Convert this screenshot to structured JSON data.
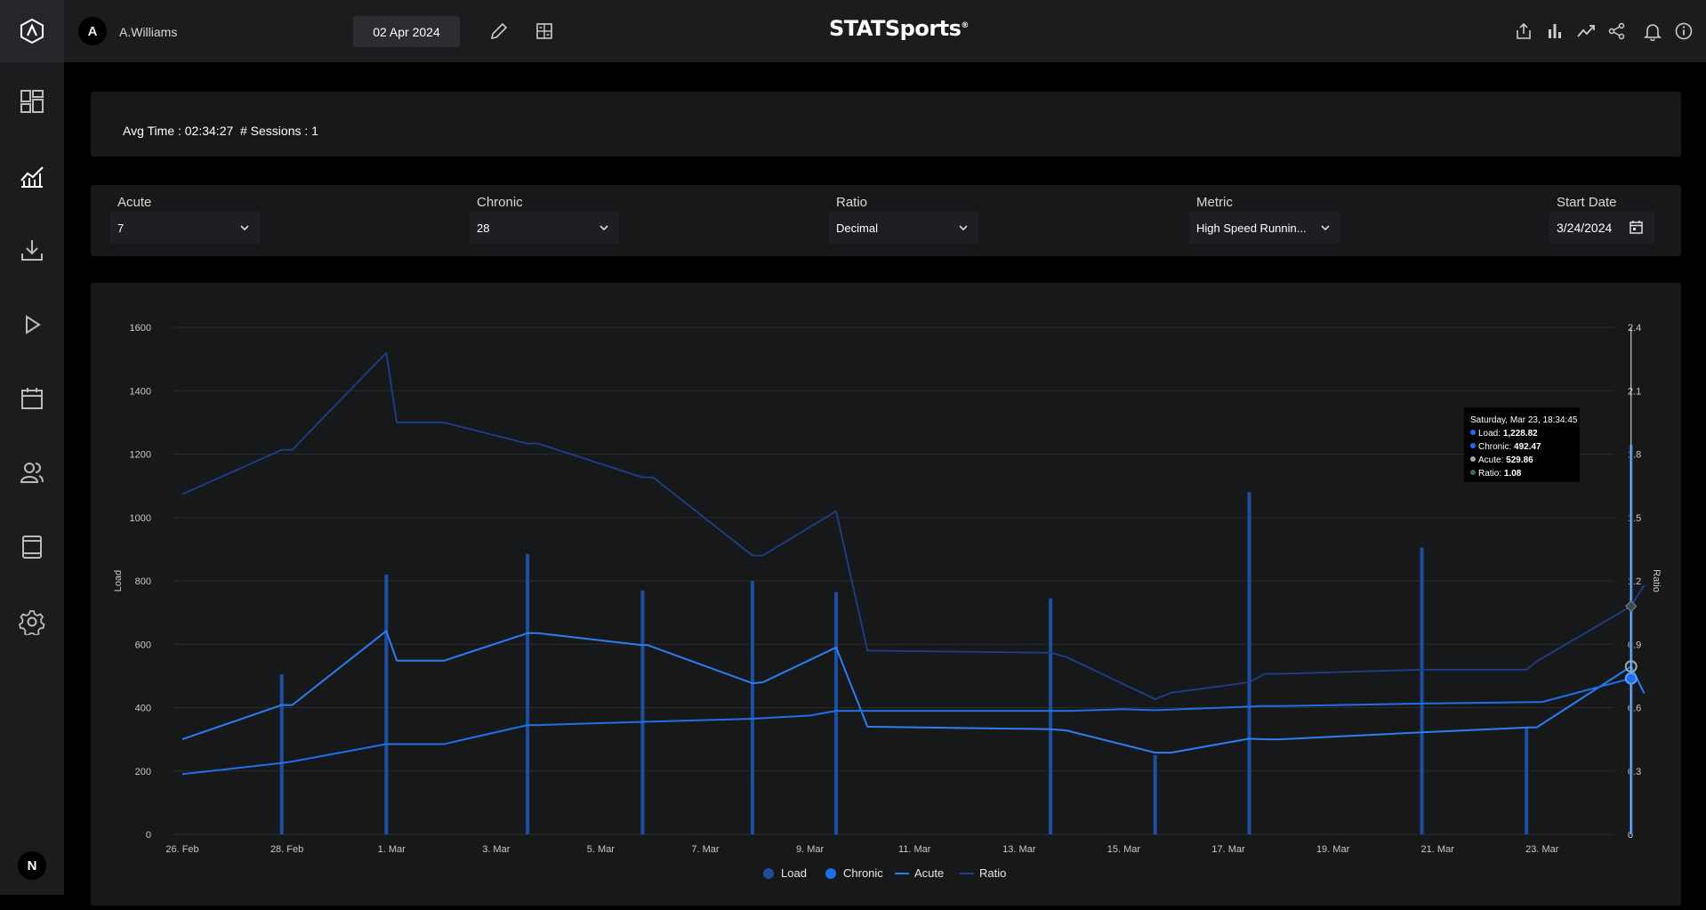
{
  "user": {
    "initial": "A",
    "name": "A.Williams"
  },
  "header": {
    "date": "02 Apr 2024",
    "brand": "STATSports",
    "brand_mark": "®"
  },
  "sidebar": {
    "user_initial": "N"
  },
  "stats": {
    "avg_time": "Avg Time : 02:34:27",
    "sessions": "# Sessions : 1"
  },
  "filters": {
    "acute": {
      "label": "Acute",
      "value": "7"
    },
    "chronic": {
      "label": "Chronic",
      "value": "28"
    },
    "ratio": {
      "label": "Ratio",
      "value": "Decimal"
    },
    "metric": {
      "label": "Metric",
      "value": "High Speed Runnin..."
    },
    "start_date": {
      "label": "Start Date",
      "value": "3/24/2024"
    }
  },
  "colors": {
    "load": "#1c4fa0",
    "chronic": "#1f6fe6",
    "acute": "#2a7ef0",
    "ratio": "#1e3f8a"
  },
  "chart_data": {
    "type": "line",
    "ylabel": "Load",
    "y2label": "Ratio",
    "ylim": [
      0,
      1600
    ],
    "y2lim": [
      0,
      2.4
    ],
    "yticks": [
      "0",
      "200",
      "400",
      "600",
      "800",
      "1000",
      "1200",
      "1400",
      "1600"
    ],
    "y2ticks": [
      "0",
      "0.3",
      "0.6",
      "0.9",
      "1.2",
      "1.5",
      "1.8",
      "2.1",
      "2.4"
    ],
    "xticks": [
      "26. Feb",
      "28. Feb",
      "1. Mar",
      "3. Mar",
      "5. Mar",
      "7. Mar",
      "9. Mar",
      "11. Mar",
      "13. Mar",
      "15. Mar",
      "17. Mar",
      "19. Mar",
      "21. Mar",
      "23. Mar"
    ],
    "legend": [
      "Load",
      "Chronic",
      "Acute",
      "Ratio"
    ],
    "grid": true,
    "legend_position": "bottom",
    "series": [
      {
        "name": "Load",
        "type": "bar",
        "points": [
          [
            1.9,
            505
          ],
          [
            3.9,
            820
          ],
          [
            6.6,
            885
          ],
          [
            8.8,
            770
          ],
          [
            10.9,
            800
          ],
          [
            12.5,
            765
          ],
          [
            16.6,
            745
          ],
          [
            18.6,
            250
          ],
          [
            20.4,
            1080
          ],
          [
            23.7,
            905
          ],
          [
            25.7,
            335
          ],
          [
            27.7,
            1230
          ]
        ]
      },
      {
        "name": "Chronic",
        "points": [
          [
            0,
            190
          ],
          [
            1.9,
            225
          ],
          [
            2.1,
            230
          ],
          [
            3.9,
            285
          ],
          [
            4.1,
            285
          ],
          [
            5.0,
            285
          ],
          [
            6.6,
            345
          ],
          [
            6.8,
            345
          ],
          [
            8.8,
            355
          ],
          [
            10.9,
            365
          ],
          [
            12.0,
            375
          ],
          [
            12.5,
            390
          ],
          [
            13.0,
            390
          ],
          [
            16.6,
            390
          ],
          [
            17.0,
            390
          ],
          [
            18.0,
            395
          ],
          [
            18.6,
            392
          ],
          [
            20.4,
            403
          ],
          [
            20.6,
            405
          ],
          [
            21.0,
            405
          ],
          [
            23.7,
            413
          ],
          [
            25.7,
            417
          ],
          [
            26.0,
            418
          ],
          [
            27.7,
            492
          ]
        ]
      },
      {
        "name": "Acute",
        "points": [
          [
            0,
            300
          ],
          [
            1.9,
            408
          ],
          [
            2.1,
            408
          ],
          [
            3.9,
            642
          ],
          [
            4.1,
            548
          ],
          [
            5.0,
            548
          ],
          [
            6.6,
            635
          ],
          [
            6.8,
            635
          ],
          [
            8.8,
            597
          ],
          [
            8.9,
            597
          ],
          [
            10.9,
            477
          ],
          [
            11.1,
            480
          ],
          [
            12.5,
            590
          ],
          [
            13.1,
            340
          ],
          [
            16.6,
            332
          ],
          [
            16.9,
            328
          ],
          [
            18.6,
            258
          ],
          [
            18.9,
            258
          ],
          [
            20.4,
            302
          ],
          [
            20.7,
            300
          ],
          [
            21.0,
            300
          ],
          [
            23.7,
            322
          ],
          [
            25.7,
            337
          ],
          [
            25.9,
            338
          ],
          [
            27.7,
            529.86
          ],
          [
            27.95,
            445
          ]
        ]
      },
      {
        "name": "Ratio",
        "axis": "y2",
        "points": [
          [
            0,
            1.61
          ],
          [
            1.9,
            1.82
          ],
          [
            2.1,
            1.82
          ],
          [
            3.9,
            2.28
          ],
          [
            4.1,
            1.95
          ],
          [
            5.0,
            1.95
          ],
          [
            6.6,
            1.85
          ],
          [
            6.8,
            1.85
          ],
          [
            8.8,
            1.69
          ],
          [
            9.0,
            1.69
          ],
          [
            10.9,
            1.32
          ],
          [
            11.1,
            1.32
          ],
          [
            12.5,
            1.53
          ],
          [
            13.1,
            0.87
          ],
          [
            16.6,
            0.86
          ],
          [
            16.9,
            0.84
          ],
          [
            18.6,
            0.64
          ],
          [
            18.9,
            0.67
          ],
          [
            20.4,
            0.72
          ],
          [
            20.7,
            0.76
          ],
          [
            21.0,
            0.76
          ],
          [
            23.7,
            0.78
          ],
          [
            25.7,
            0.78
          ],
          [
            25.9,
            0.82
          ],
          [
            27.7,
            1.08
          ],
          [
            27.95,
            1.18
          ]
        ]
      }
    ],
    "tooltip": {
      "title": "Saturday, Mar 23, 18:34:45",
      "rows": [
        {
          "label": "Load: ",
          "value": "1,228.82"
        },
        {
          "label": "Chronic: ",
          "value": "492.47"
        },
        {
          "label": "Acute: ",
          "value": "529.86"
        },
        {
          "label": "Ratio: ",
          "value": "1.08"
        }
      ]
    }
  }
}
